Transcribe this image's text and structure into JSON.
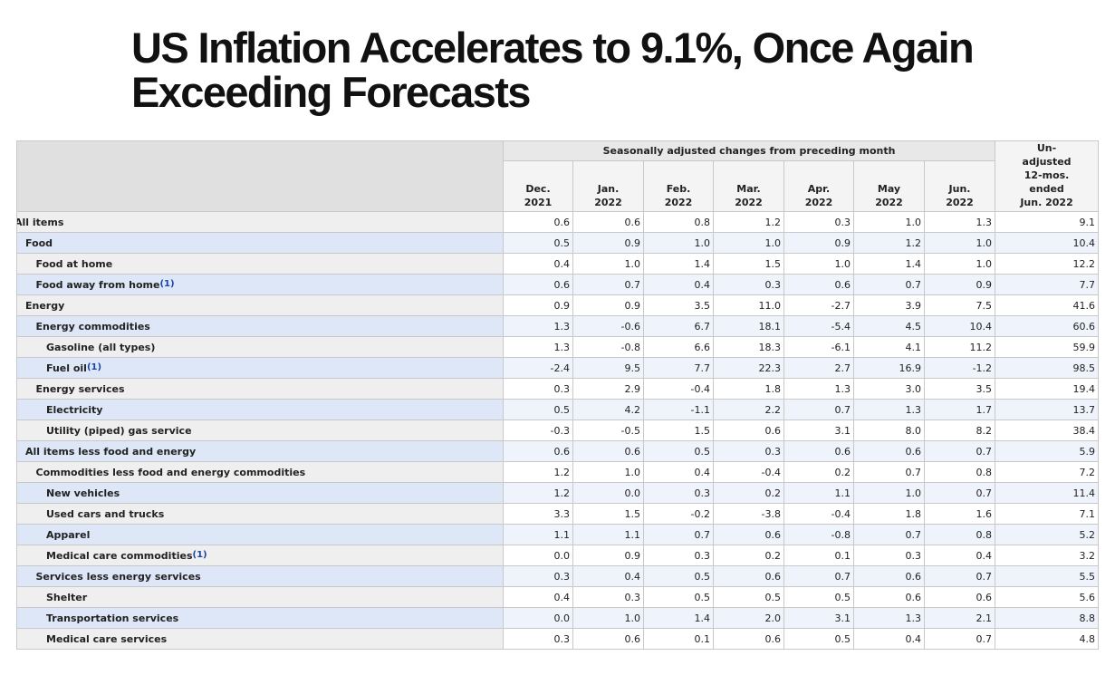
{
  "header": {
    "title": "US Inflation Accelerates to 9.1%, Once Again Exceeding Forecasts"
  },
  "table": {
    "group_header": "Seasonally adjusted changes from preceding month",
    "columns": [
      "Dec.\n2021",
      "Jan.\n2022",
      "Feb.\n2022",
      "Mar.\n2022",
      "Apr.\n2022",
      "May\n2022",
      "Jun.\n2022",
      "Un-\nadjusted\n12-mos.\nended\nJun. 2022"
    ],
    "rows": [
      {
        "label": "All items",
        "values": [
          "0.6",
          "0.6",
          "0.8",
          "1.2",
          "0.3",
          "1.0",
          "1.3",
          "9.1"
        ]
      },
      {
        "label": "Food",
        "values": [
          "0.5",
          "0.9",
          "1.0",
          "1.0",
          "0.9",
          "1.2",
          "1.0",
          "10.4"
        ]
      },
      {
        "label": "Food at home",
        "values": [
          "0.4",
          "1.0",
          "1.4",
          "1.5",
          "1.0",
          "1.4",
          "1.0",
          "12.2"
        ]
      },
      {
        "label": "Food away from home",
        "note": "(1)",
        "values": [
          "0.6",
          "0.7",
          "0.4",
          "0.3",
          "0.6",
          "0.7",
          "0.9",
          "7.7"
        ]
      },
      {
        "label": "Energy",
        "values": [
          "0.9",
          "0.9",
          "3.5",
          "11.0",
          "-2.7",
          "3.9",
          "7.5",
          "41.6"
        ]
      },
      {
        "label": "Energy commodities",
        "values": [
          "1.3",
          "-0.6",
          "6.7",
          "18.1",
          "-5.4",
          "4.5",
          "10.4",
          "60.6"
        ]
      },
      {
        "label": "Gasoline (all types)",
        "values": [
          "1.3",
          "-0.8",
          "6.6",
          "18.3",
          "-6.1",
          "4.1",
          "11.2",
          "59.9"
        ]
      },
      {
        "label": "Fuel oil",
        "note": "(1)",
        "values": [
          "-2.4",
          "9.5",
          "7.7",
          "22.3",
          "2.7",
          "16.9",
          "-1.2",
          "98.5"
        ]
      },
      {
        "label": "Energy services",
        "values": [
          "0.3",
          "2.9",
          "-0.4",
          "1.8",
          "1.3",
          "3.0",
          "3.5",
          "19.4"
        ]
      },
      {
        "label": "Electricity",
        "values": [
          "0.5",
          "4.2",
          "-1.1",
          "2.2",
          "0.7",
          "1.3",
          "1.7",
          "13.7"
        ]
      },
      {
        "label": "Utility (piped) gas service",
        "values": [
          "-0.3",
          "-0.5",
          "1.5",
          "0.6",
          "3.1",
          "8.0",
          "8.2",
          "38.4"
        ]
      },
      {
        "label": "All items less food and energy",
        "values": [
          "0.6",
          "0.6",
          "0.5",
          "0.3",
          "0.6",
          "0.6",
          "0.7",
          "5.9"
        ]
      },
      {
        "label": "Commodities less food and energy commodities",
        "values": [
          "1.2",
          "1.0",
          "0.4",
          "-0.4",
          "0.2",
          "0.7",
          "0.8",
          "7.2"
        ]
      },
      {
        "label": "New vehicles",
        "values": [
          "1.2",
          "0.0",
          "0.3",
          "0.2",
          "1.1",
          "1.0",
          "0.7",
          "11.4"
        ]
      },
      {
        "label": "Used cars and trucks",
        "values": [
          "3.3",
          "1.5",
          "-0.2",
          "-3.8",
          "-0.4",
          "1.8",
          "1.6",
          "7.1"
        ]
      },
      {
        "label": "Apparel",
        "values": [
          "1.1",
          "1.1",
          "0.7",
          "0.6",
          "-0.8",
          "0.7",
          "0.8",
          "5.2"
        ]
      },
      {
        "label": "Medical care commodities",
        "note": "(1)",
        "values": [
          "0.0",
          "0.9",
          "0.3",
          "0.2",
          "0.1",
          "0.3",
          "0.4",
          "3.2"
        ]
      },
      {
        "label": "Services less energy services",
        "values": [
          "0.3",
          "0.4",
          "0.5",
          "0.6",
          "0.7",
          "0.6",
          "0.7",
          "5.5"
        ]
      },
      {
        "label": "Shelter",
        "values": [
          "0.4",
          "0.3",
          "0.5",
          "0.5",
          "0.5",
          "0.6",
          "0.6",
          "5.6"
        ]
      },
      {
        "label": "Transportation services",
        "values": [
          "0.0",
          "1.0",
          "1.4",
          "2.0",
          "3.1",
          "1.3",
          "2.1",
          "8.8"
        ]
      },
      {
        "label": "Medical care services",
        "values": [
          "0.3",
          "0.6",
          "0.1",
          "0.6",
          "0.5",
          "0.4",
          "0.7",
          "4.8"
        ]
      }
    ]
  }
}
